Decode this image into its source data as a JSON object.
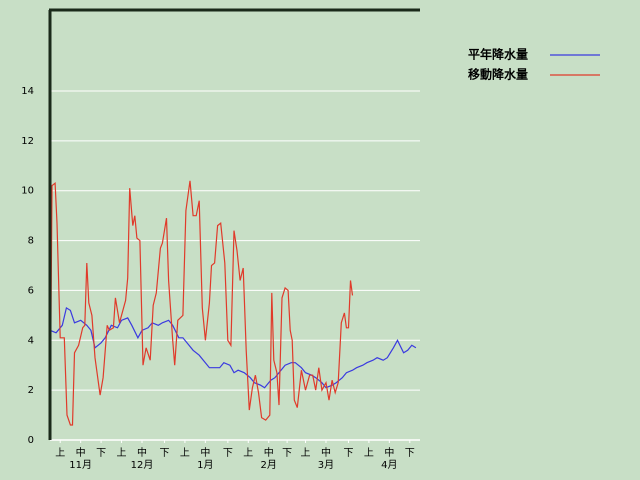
{
  "chart_data": {
    "type": "line",
    "xlim": [
      0,
      181
    ],
    "ylim": [
      0,
      17.25
    ],
    "yticks": [
      0,
      2,
      4,
      6,
      8,
      10,
      12,
      14
    ],
    "xticks": [
      {
        "value": 5,
        "label": "上"
      },
      {
        "value": 15,
        "label": "中"
      },
      {
        "value": 25,
        "label": "下"
      },
      {
        "value": 35,
        "label": "上"
      },
      {
        "value": 45,
        "label": "中"
      },
      {
        "value": 56,
        "label": "下"
      },
      {
        "value": 66,
        "label": "上"
      },
      {
        "value": 76,
        "label": "中"
      },
      {
        "value": 87,
        "label": "下"
      },
      {
        "value": 97,
        "label": "上"
      },
      {
        "value": 107,
        "label": "中"
      },
      {
        "value": 116,
        "label": "下"
      },
      {
        "value": 125,
        "label": "上"
      },
      {
        "value": 135,
        "label": "中"
      },
      {
        "value": 146,
        "label": "下"
      },
      {
        "value": 156,
        "label": "上"
      },
      {
        "value": 166,
        "label": "中"
      },
      {
        "value": 176,
        "label": "下"
      }
    ],
    "month_labels": [
      {
        "value": 15,
        "label": "11月"
      },
      {
        "value": 45,
        "label": "12月"
      },
      {
        "value": 76,
        "label": "1月"
      },
      {
        "value": 107,
        "label": "2月"
      },
      {
        "value": 135,
        "label": "3月"
      },
      {
        "value": 166,
        "label": "4月"
      }
    ],
    "grid": true,
    "legend": "top-right",
    "series": [
      {
        "name": "平年降水量",
        "color": "#3a3ae0",
        "x": [
          0,
          3,
          6,
          8,
          10,
          12,
          15,
          18,
          20,
          22,
          25,
          27,
          30,
          33,
          35,
          38,
          40,
          43,
          45,
          48,
          50,
          53,
          55,
          58,
          60,
          63,
          65,
          68,
          70,
          73,
          75,
          78,
          80,
          83,
          85,
          88,
          90,
          92,
          95,
          98,
          100,
          103,
          105,
          108,
          110,
          113,
          115,
          118,
          120,
          123,
          125,
          128,
          130,
          133,
          135,
          138,
          140,
          143,
          145,
          148,
          150,
          153,
          155,
          158,
          160,
          163,
          165,
          168,
          170,
          173,
          175,
          177,
          179
        ],
        "values": [
          4.4,
          4.3,
          4.6,
          5.3,
          5.2,
          4.7,
          4.8,
          4.6,
          4.4,
          3.7,
          3.9,
          4.1,
          4.6,
          4.5,
          4.8,
          4.9,
          4.6,
          4.1,
          4.4,
          4.5,
          4.7,
          4.6,
          4.7,
          4.8,
          4.6,
          4.1,
          4.1,
          3.8,
          3.6,
          3.4,
          3.2,
          2.9,
          2.9,
          2.9,
          3.1,
          3.0,
          2.7,
          2.8,
          2.7,
          2.5,
          2.3,
          2.2,
          2.1,
          2.4,
          2.5,
          2.8,
          3.0,
          3.1,
          3.1,
          2.9,
          2.7,
          2.6,
          2.5,
          2.3,
          2.1,
          2.2,
          2.3,
          2.5,
          2.7,
          2.8,
          2.9,
          3.0,
          3.1,
          3.2,
          3.3,
          3.2,
          3.3,
          3.7,
          4.0,
          3.5,
          3.6,
          3.8,
          3.7
        ]
      },
      {
        "name": "移動降水量",
        "color": "#e03a2a",
        "x": [
          0,
          1,
          2.5,
          3.4,
          5,
          7,
          8.3,
          10,
          11,
          12,
          14,
          16,
          17,
          18,
          19,
          20.5,
          22,
          24.5,
          26,
          28,
          29,
          31,
          32,
          34,
          37,
          38,
          39,
          40.5,
          41.5,
          42.5,
          44,
          45.5,
          47,
          49,
          50.5,
          52,
          54,
          55,
          57,
          58,
          60,
          61,
          62.5,
          65,
          66.5,
          68.5,
          70,
          71.5,
          73,
          74.5,
          76,
          78,
          79,
          80.5,
          82,
          83.5,
          85.5,
          87,
          88.5,
          90,
          91.5,
          93,
          94.5,
          96,
          97.5,
          99,
          100.5,
          102,
          103.5,
          105.5,
          107.5,
          108.5,
          109.5,
          111,
          112,
          113.5,
          115,
          116.5,
          117.5,
          118.5,
          119.5,
          121,
          123,
          125,
          127,
          128.5,
          130,
          131.5,
          133,
          135,
          136.5,
          138,
          139.5,
          141,
          142.5,
          144,
          145,
          146,
          147,
          148
        ],
        "values": [
          0,
          10.2,
          10.3,
          8.7,
          4.1,
          4.1,
          1.0,
          0.6,
          0.6,
          3.5,
          3.8,
          4.5,
          4.6,
          7.1,
          5.5,
          5.0,
          3.3,
          1.8,
          2.5,
          4.6,
          4.4,
          4.5,
          5.7,
          4.7,
          5.6,
          6.5,
          10.1,
          8.6,
          9.0,
          8.1,
          8.0,
          3.0,
          3.7,
          3.2,
          5.4,
          5.9,
          7.7,
          7.9,
          8.9,
          6.4,
          4.0,
          3.0,
          4.8,
          5.0,
          9.2,
          10.4,
          9.0,
          9.0,
          9.6,
          5.3,
          4.0,
          5.5,
          7.0,
          7.1,
          8.6,
          8.7,
          7.1,
          4.0,
          3.8,
          8.4,
          7.6,
          6.4,
          6.9,
          3.6,
          1.2,
          2.1,
          2.6,
          1.9,
          0.9,
          0.8,
          1.0,
          5.9,
          3.2,
          2.7,
          1.4,
          5.7,
          6.1,
          6.0,
          4.4,
          4.0,
          1.6,
          1.3,
          2.8,
          2.0,
          2.6,
          2.6,
          2.0,
          2.9,
          2.0,
          2.3,
          1.6,
          2.4,
          1.9,
          2.3,
          4.7,
          5.1,
          4.5,
          4.5,
          6.4,
          5.8
        ]
      }
    ]
  }
}
